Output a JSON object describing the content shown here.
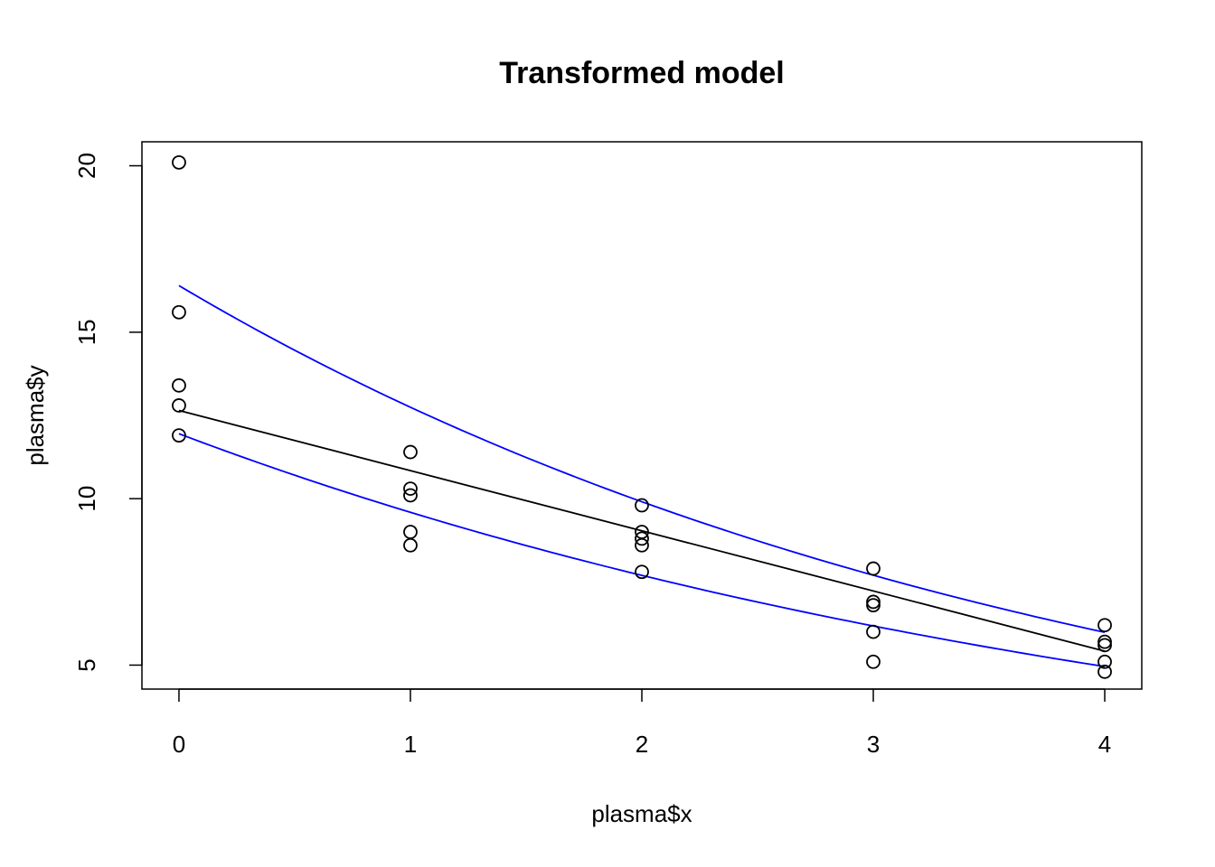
{
  "chart_data": {
    "type": "scatter",
    "title": "Transformed model",
    "xlabel": "plasma$x",
    "ylabel": "plasma$y",
    "xlim": [
      -0.16,
      4.16
    ],
    "ylim": [
      4.28,
      20.72
    ],
    "x_ticks": [
      0,
      1,
      2,
      3,
      4
    ],
    "y_ticks": [
      5,
      10,
      15,
      20
    ],
    "x_tick_labels": [
      "0",
      "1",
      "2",
      "3",
      "4"
    ],
    "y_tick_labels": [
      "5",
      "10",
      "15",
      "20"
    ],
    "grid": false,
    "legend": "none",
    "points": {
      "x": [
        0,
        0,
        0,
        0,
        0,
        1,
        1,
        1,
        1,
        1,
        2,
        2,
        2,
        2,
        2,
        3,
        3,
        3,
        3,
        3,
        4,
        4,
        4,
        4,
        4
      ],
      "y": [
        20.1,
        15.6,
        13.4,
        12.8,
        11.9,
        11.4,
        10.3,
        10.1,
        9.0,
        8.6,
        9.8,
        9.0,
        8.8,
        8.6,
        7.8,
        7.9,
        6.9,
        6.8,
        6.0,
        5.1,
        6.2,
        5.7,
        5.6,
        5.1,
        4.8
      ]
    },
    "fitted_line": {
      "x": [
        0,
        4
      ],
      "y": [
        12.65,
        5.42
      ],
      "color": "#000000"
    },
    "upper_band": {
      "a": 16.4,
      "b": 0.252,
      "x_range": [
        0,
        4
      ],
      "color": "#0000ff"
    },
    "lower_band": {
      "a": 11.95,
      "b": 0.22,
      "x_range": [
        0,
        4
      ],
      "color": "#0000ff"
    }
  }
}
